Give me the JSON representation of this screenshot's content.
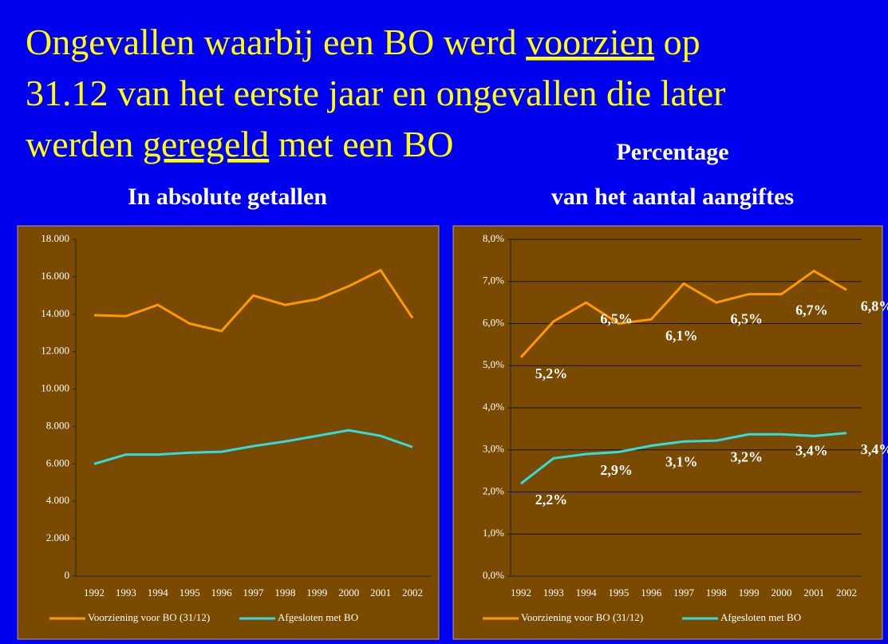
{
  "title_lines": [
    [
      "Ongevallen waarbij een BO werd ",
      "voorzien",
      " op"
    ],
    [
      "31.12 van het eerste jaar en ongevallen die later"
    ],
    [
      "werden ",
      "geregeld",
      " met een BO"
    ]
  ],
  "chart_data": [
    {
      "type": "line",
      "title": [
        "In absolute getallen"
      ],
      "categories": [
        "1992",
        "1993",
        "1994",
        "1995",
        "1996",
        "1997",
        "1998",
        "1999",
        "2000",
        "2001",
        "2002"
      ],
      "series": [
        {
          "name": "Voorziening voor BO (31/12)",
          "color": "#ff9900",
          "values": [
            13950,
            13900,
            14500,
            13500,
            13100,
            15000,
            14500,
            14800,
            15500,
            16350,
            13800
          ]
        },
        {
          "name": "Afgesloten met BO",
          "color": "#33dddd",
          "values": [
            6000,
            6500,
            6500,
            6600,
            6650,
            6950,
            7200,
            7500,
            7800,
            7500,
            6900
          ]
        }
      ],
      "ylim": [
        0,
        18000
      ],
      "yticks": [
        0,
        {
          "value": 2000,
          "label": "2.000"
        },
        {
          "value": 4000,
          "label": "4.000"
        },
        {
          "value": 6000,
          "label": "6.000"
        },
        {
          "value": 8000,
          "label": "8.000"
        },
        {
          "value": 10000,
          "label": "10.000"
        },
        {
          "value": 12000,
          "label": "12.000"
        },
        {
          "value": 14000,
          "label": "14.000"
        },
        {
          "value": 16000,
          "label": "16.000"
        },
        {
          "value": 18000,
          "label": "18.000"
        }
      ],
      "grid": false
    },
    {
      "type": "line",
      "title": [
        "Percentage",
        "van het aantal aangiftes"
      ],
      "categories": [
        "1992",
        "1993",
        "1994",
        "1995",
        "1996",
        "1997",
        "1998",
        "1999",
        "2000",
        "2001",
        "2002"
      ],
      "series": [
        {
          "name": "Voorziening voor BO (31/12)",
          "color": "#ff9900",
          "values": [
            5.2,
            6.05,
            6.5,
            6.0,
            6.1,
            6.95,
            6.5,
            6.7,
            6.7,
            7.25,
            6.8
          ],
          "value_labels": [
            "5,2%",
            null,
            "6,5%",
            null,
            "6,1%",
            null,
            "6,5%",
            null,
            "6,7%",
            null,
            "6,8%"
          ]
        },
        {
          "name": "Afgesloten met BO",
          "color": "#33dddd",
          "values": [
            2.2,
            2.8,
            2.9,
            2.95,
            3.1,
            3.2,
            3.22,
            3.37,
            3.37,
            3.33,
            3.4
          ],
          "value_labels": [
            "2,2%",
            null,
            "2,9%",
            null,
            "3,1%",
            null,
            "3,2%",
            null,
            "3,4%",
            null,
            "3,4%"
          ]
        }
      ],
      "ylim": [
        0,
        8
      ],
      "yticks": [
        {
          "value": 0,
          "label": "0,0%"
        },
        {
          "value": 1,
          "label": "1,0%"
        },
        {
          "value": 2,
          "label": "2,0%"
        },
        {
          "value": 3,
          "label": "3,0%"
        },
        {
          "value": 4,
          "label": "4,0%"
        },
        {
          "value": 5,
          "label": "5,0%"
        },
        {
          "value": 6,
          "label": "6,0%"
        },
        {
          "value": 7,
          "label": "7,0%"
        },
        {
          "value": 8,
          "label": "8,0%"
        }
      ],
      "grid": true
    }
  ]
}
